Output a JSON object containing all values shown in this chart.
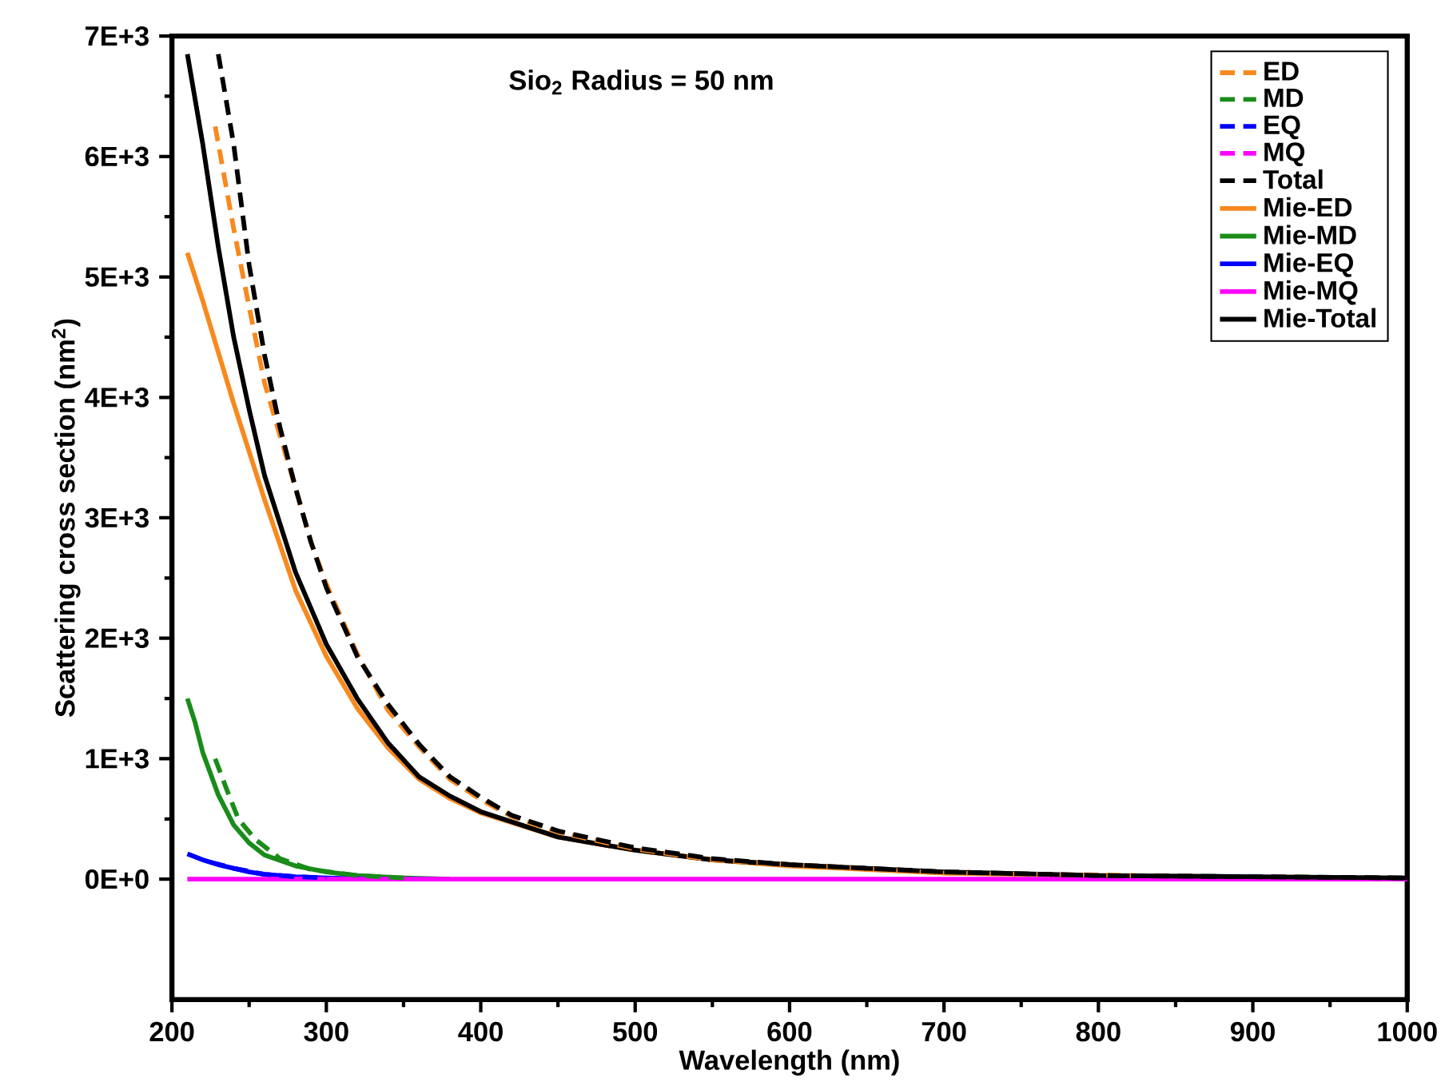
{
  "chart_data": {
    "type": "line",
    "xlabel": "Wavelength (nm)",
    "ylabel": "Scattering cross section (nm$^{2}$)",
    "annotations": [
      "Sio$_{2}$ Radius = 50 nm"
    ],
    "xlim": [
      200,
      1000
    ],
    "xticks": [
      200,
      300,
      400,
      500,
      600,
      700,
      800,
      900,
      1000
    ],
    "ylim": [
      -1000,
      7000
    ],
    "yticks": [
      {
        "value": 0,
        "label": "0E+0"
      },
      {
        "value": 1000,
        "label": "1E+3"
      },
      {
        "value": 2000,
        "label": "2E+3"
      },
      {
        "value": 3000,
        "label": "3E+3"
      },
      {
        "value": 4000,
        "label": "4E+3"
      },
      {
        "value": 5000,
        "label": "5E+3"
      },
      {
        "value": 6000,
        "label": "6E+3"
      },
      {
        "value": 7000,
        "label": "7E+3"
      }
    ],
    "grid": false,
    "legend": "top right",
    "marker": "none",
    "series": [
      {
        "name": "ED",
        "color": "#f7891f",
        "line_style": "dashed",
        "x": [
          228,
          240,
          250,
          260,
          270,
          280,
          290,
          300,
          320,
          340,
          360,
          380,
          400,
          420,
          450,
          500,
          550,
          600,
          700,
          825
        ],
        "values": [
          6250,
          5400,
          4750,
          4120,
          3680,
          3250,
          2800,
          2450,
          1870,
          1400,
          1100,
          830,
          660,
          520,
          390,
          250,
          160,
          120,
          50,
          30
        ]
      },
      {
        "name": "MD",
        "color": "#1a8c1a",
        "line_style": "dashed",
        "x": [
          228,
          235,
          243,
          254,
          270,
          290,
          320,
          350
        ],
        "values": [
          1000,
          760,
          500,
          330,
          170,
          80,
          30,
          10
        ]
      },
      {
        "name": "EQ",
        "color": "#0000ff",
        "line_style": "dashed",
        "x": [
          225,
          240,
          260,
          280,
          300
        ],
        "values": [
          140,
          90,
          40,
          20,
          10
        ]
      },
      {
        "name": "MQ",
        "color": "#ff00ff",
        "line_style": "dashed"
      },
      {
        "name": "Total",
        "color": "#000000",
        "line_style": "dashed",
        "x": [
          230,
          240,
          250,
          260,
          270,
          280,
          290,
          300,
          320,
          340,
          360,
          380,
          400,
          420,
          450,
          500,
          550,
          600,
          700,
          800,
          900,
          1000
        ],
        "values": [
          6850,
          6100,
          5100,
          4350,
          3750,
          3250,
          2800,
          2420,
          1850,
          1450,
          1120,
          850,
          680,
          530,
          400,
          260,
          170,
          120,
          60,
          30,
          20,
          10
        ]
      },
      {
        "name": "Mie-ED",
        "color": "#f7891f",
        "line_style": "solid",
        "x": [
          210,
          220,
          240,
          260,
          280,
          300,
          320,
          340,
          360,
          380,
          400,
          450,
          500,
          550,
          600,
          700,
          800
        ],
        "values": [
          5200,
          4800,
          3950,
          3150,
          2400,
          1850,
          1420,
          1090,
          830,
          670,
          550,
          350,
          240,
          160,
          110,
          50,
          30
        ]
      },
      {
        "name": "Mie-MD",
        "color": "#1a8c1a",
        "line_style": "solid",
        "x": [
          210,
          215,
          220,
          230,
          240,
          250,
          260,
          280,
          300,
          320,
          350,
          380
        ],
        "values": [
          1500,
          1300,
          1050,
          700,
          450,
          300,
          200,
          110,
          60,
          30,
          10,
          0
        ]
      },
      {
        "name": "Mie-EQ",
        "color": "#0000ff",
        "line_style": "solid",
        "x": [
          210,
          220,
          230,
          240,
          250,
          260,
          280,
          300,
          330,
          370
        ],
        "values": [
          210,
          160,
          120,
          90,
          60,
          40,
          20,
          10,
          0,
          0
        ]
      },
      {
        "name": "Mie-MQ",
        "color": "#ff00ff",
        "line_style": "solid",
        "x": [
          210,
          300,
          400,
          500,
          600,
          700,
          800,
          900,
          1000
        ],
        "values": [
          0,
          0,
          0,
          0,
          0,
          0,
          0,
          0,
          0
        ]
      },
      {
        "name": "Mie-Total",
        "color": "#000000",
        "line_style": "solid",
        "x": [
          210,
          220,
          230,
          240,
          250,
          260,
          280,
          300,
          320,
          340,
          360,
          380,
          400,
          450,
          500,
          550,
          600,
          700,
          800,
          900,
          1000
        ],
        "values": [
          6850,
          6100,
          5250,
          4500,
          3900,
          3350,
          2550,
          1950,
          1500,
          1130,
          850,
          690,
          560,
          350,
          240,
          160,
          120,
          60,
          30,
          20,
          10
        ]
      }
    ]
  }
}
